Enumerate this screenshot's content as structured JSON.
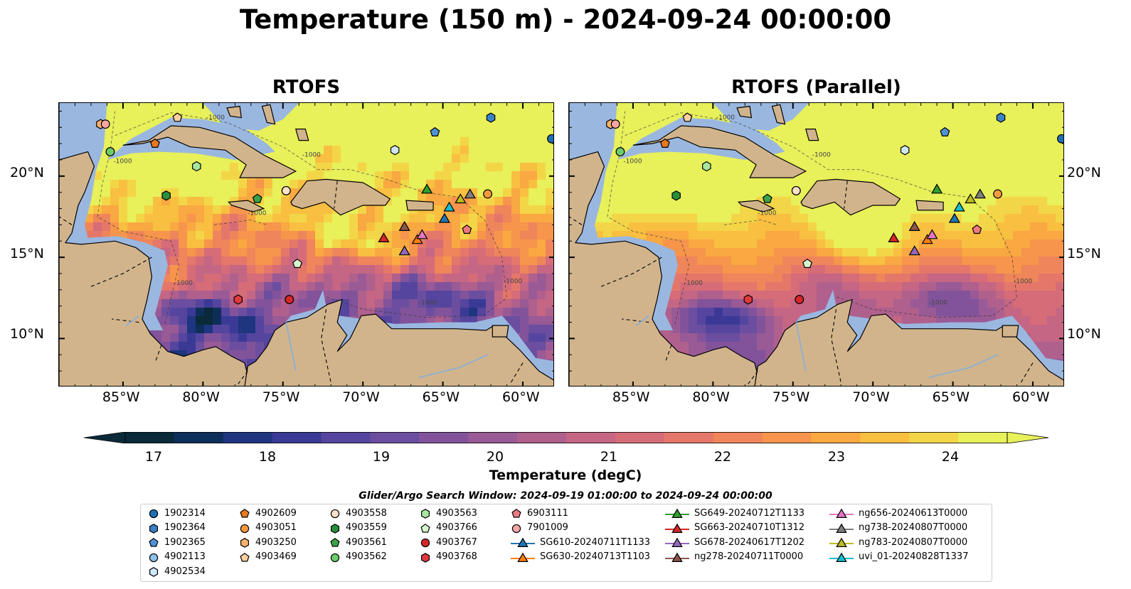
{
  "title": "Temperature (150 m) - 2024-09-24 00:00:00",
  "panels": [
    {
      "title": "RTOFS"
    },
    {
      "title": "RTOFS (Parallel)"
    }
  ],
  "lon_ticks": [
    "85°W",
    "80°W",
    "75°W",
    "70°W",
    "65°W",
    "60°W"
  ],
  "lat_ticks": [
    "20°N",
    "15°N",
    "10°N"
  ],
  "contour_label": "-1000",
  "colorbar": {
    "label": "Temperature (degC)",
    "ticks": [
      "17",
      "18",
      "19",
      "20",
      "21",
      "22",
      "23",
      "24"
    ],
    "min": 16.75,
    "max": 24.5,
    "colors": [
      "#0a2a3a",
      "#0e2e5a",
      "#1f3580",
      "#3a3a96",
      "#55459e",
      "#6b4e9f",
      "#82539b",
      "#995a96",
      "#b0608d",
      "#c46684",
      "#d66c78",
      "#e4776a",
      "#ef855a",
      "#f6954b",
      "#f9a842",
      "#f8bf40",
      "#f3d647",
      "#e8f05a"
    ]
  },
  "legend": {
    "title": "Glider/Argo Search Window: 2024-09-19 01:00:00 to 2024-09-24 00:00:00",
    "items": [
      {
        "label": "1902314",
        "shape": "circle",
        "color": "#1f6fb4"
      },
      {
        "label": "1902364",
        "shape": "hexagon",
        "color": "#3a82c8"
      },
      {
        "label": "1902365",
        "shape": "pentagon",
        "color": "#4f92d6"
      },
      {
        "label": "4902113",
        "shape": "circle",
        "color": "#8fc0ea"
      },
      {
        "label": "4902534",
        "shape": "hexagon",
        "color": "#cfe8fa"
      },
      {
        "label": "4902609",
        "shape": "pentagon",
        "color": "#e8791f"
      },
      {
        "label": "4903051",
        "shape": "circle",
        "color": "#f59a3c"
      },
      {
        "label": "4903250",
        "shape": "hexagon",
        "color": "#f9b26b"
      },
      {
        "label": "4903469",
        "shape": "pentagon",
        "color": "#fbcf9d"
      },
      {
        "label": "4903558",
        "shape": "circle",
        "color": "#fde0c8"
      },
      {
        "label": "4903559",
        "shape": "hexagon",
        "color": "#2b8f3a"
      },
      {
        "label": "4903561",
        "shape": "pentagon",
        "color": "#3aa34a"
      },
      {
        "label": "4903562",
        "shape": "circle",
        "color": "#6ccb6a"
      },
      {
        "label": "4903563",
        "shape": "hexagon",
        "color": "#a8e6a0"
      },
      {
        "label": "4903766",
        "shape": "pentagon",
        "color": "#d6f5cf"
      },
      {
        "label": "4903767",
        "shape": "circle",
        "color": "#d62728"
      },
      {
        "label": "4903768",
        "shape": "hexagon",
        "color": "#e0393e"
      },
      {
        "label": "6903111",
        "shape": "pentagon",
        "color": "#f07a82"
      },
      {
        "label": "7901009",
        "shape": "circle",
        "color": "#f7a6a8"
      },
      {
        "label": "SG610-20240711T1133",
        "shape": "triangle-line",
        "color": "#1f77b4"
      },
      {
        "label": "SG630-20240713T1103",
        "shape": "triangle-line",
        "color": "#ff7f0e"
      },
      {
        "label": "SG649-20240712T1133",
        "shape": "triangle-line",
        "color": "#2ca02c"
      },
      {
        "label": "SG663-20240710T1312",
        "shape": "triangle-line",
        "color": "#d62728"
      },
      {
        "label": "SG678-20240617T1202",
        "shape": "triangle-line",
        "color": "#9467bd"
      },
      {
        "label": "ng278-20240711T0000",
        "shape": "triangle-line",
        "color": "#8c564b"
      },
      {
        "label": "ng656-20240613T0000",
        "shape": "triangle-line",
        "color": "#e377c2"
      },
      {
        "label": "ng738-20240807T0000",
        "shape": "triangle-line",
        "color": "#7f7f7f"
      },
      {
        "label": "ng783-20240807T0000",
        "shape": "triangle-line",
        "color": "#bcbd22"
      },
      {
        "label": "uvi_01-20240828T1337",
        "shape": "triangle-line",
        "color": "#17becf"
      }
    ]
  },
  "colors": {
    "land": "#d2b48c",
    "shelf": "#9ab7e0",
    "deep": "#0a2533"
  }
}
